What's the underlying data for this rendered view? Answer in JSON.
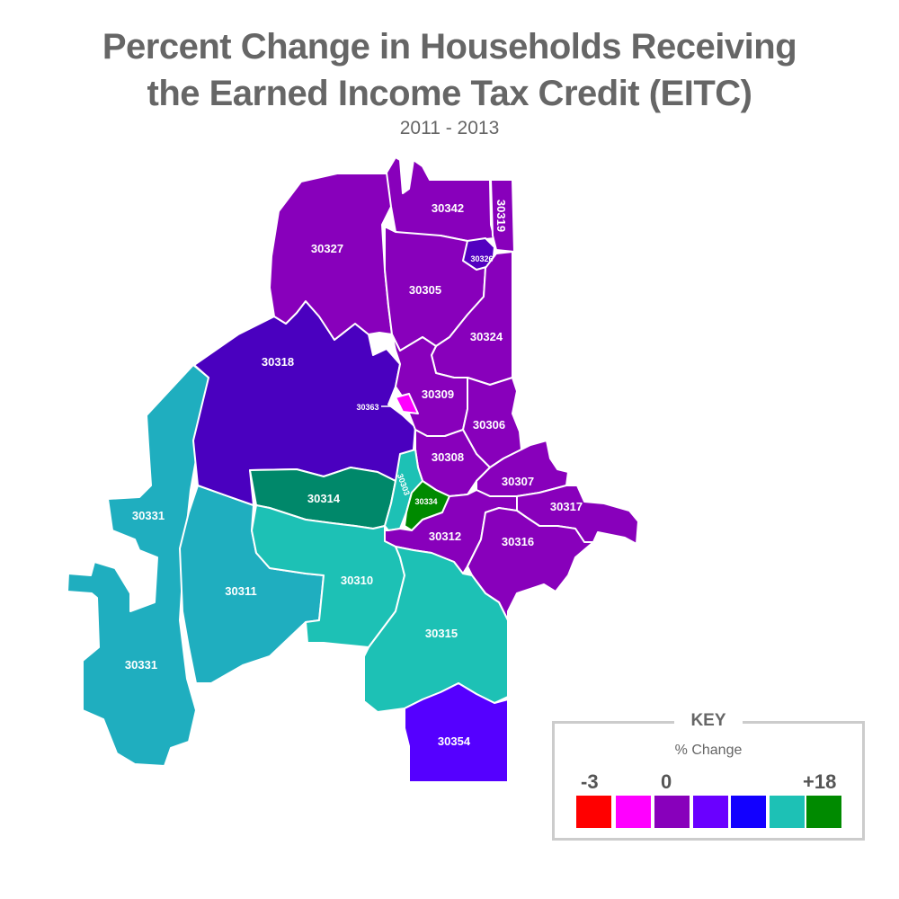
{
  "title_line1": "Percent Change in Households Receiving",
  "title_line2": "the Earned Income Tax Credit (EITC)",
  "subtitle": "2011 - 2013",
  "key": {
    "title": "KEY",
    "subtitle": "% Change",
    "min_label": "-3",
    "zero_label": "0",
    "max_label": "+18",
    "swatches": [
      "#ff0000",
      "#ff00ff",
      "#8800bb",
      "#6a00ff",
      "#1200ff",
      "#1dc1b5",
      "#008a00"
    ]
  },
  "zip_codes": [
    {
      "zip": "30342",
      "color": "#8800bb"
    },
    {
      "zip": "30319",
      "color": "#8800bb"
    },
    {
      "zip": "30327",
      "color": "#8800bb"
    },
    {
      "zip": "30326",
      "color": "#5200c0"
    },
    {
      "zip": "30305",
      "color": "#8800bb"
    },
    {
      "zip": "30324",
      "color": "#8800bb"
    },
    {
      "zip": "30318",
      "color": "#4a00bf"
    },
    {
      "zip": "30363",
      "color": "#ff00ff"
    },
    {
      "zip": "30309",
      "color": "#8800bb"
    },
    {
      "zip": "30306",
      "color": "#8800bb"
    },
    {
      "zip": "30308",
      "color": "#8800bb"
    },
    {
      "zip": "30307",
      "color": "#8800bb"
    },
    {
      "zip": "30317",
      "color": "#8800bb"
    },
    {
      "zip": "30314",
      "color": "#00886a"
    },
    {
      "zip": "30303",
      "color": "#1dc1b5"
    },
    {
      "zip": "30334",
      "color": "#008a00"
    },
    {
      "zip": "30312",
      "color": "#8800bb"
    },
    {
      "zip": "30316",
      "color": "#8800bb"
    },
    {
      "zip": "30331",
      "color": "#1faebf"
    },
    {
      "zip": "30311",
      "color": "#1faebf"
    },
    {
      "zip": "30310",
      "color": "#1dc1b5"
    },
    {
      "zip": "30315",
      "color": "#1dc1b5"
    },
    {
      "zip": "30354",
      "color": "#5500ff"
    }
  ]
}
